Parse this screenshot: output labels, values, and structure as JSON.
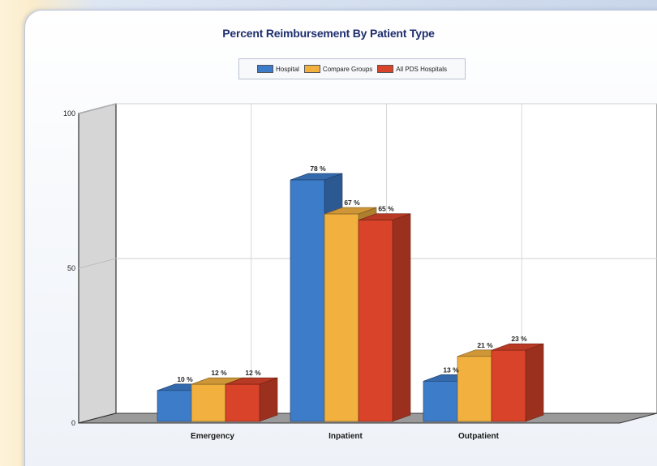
{
  "chart_data": {
    "type": "bar",
    "title": "Percent Reimbursement By Patient Type",
    "categories": [
      "Emergency",
      "Inpatient",
      "Outpatient"
    ],
    "series": [
      {
        "name": "Hospital",
        "values": [
          10,
          78,
          13
        ],
        "labels": [
          "10 %",
          "78 %",
          "13 %"
        ]
      },
      {
        "name": "Compare Groups",
        "values": [
          12,
          67,
          21
        ],
        "labels": [
          "12 %",
          "67 %",
          "21 %"
        ]
      },
      {
        "name": "All PDS Hospitals",
        "values": [
          12,
          65,
          23
        ],
        "labels": [
          "12 %",
          "65 %",
          "23 %"
        ]
      }
    ],
    "y_ticks": [
      "0",
      "50",
      "100"
    ],
    "ylim": [
      0,
      100
    ],
    "grid": true,
    "legend_position": "top-center",
    "style": "3d-clustered-bar"
  },
  "colors": {
    "hospital": "#3d7cc9",
    "compare_groups": "#f2b13f",
    "all_pds": "#d9432a"
  }
}
